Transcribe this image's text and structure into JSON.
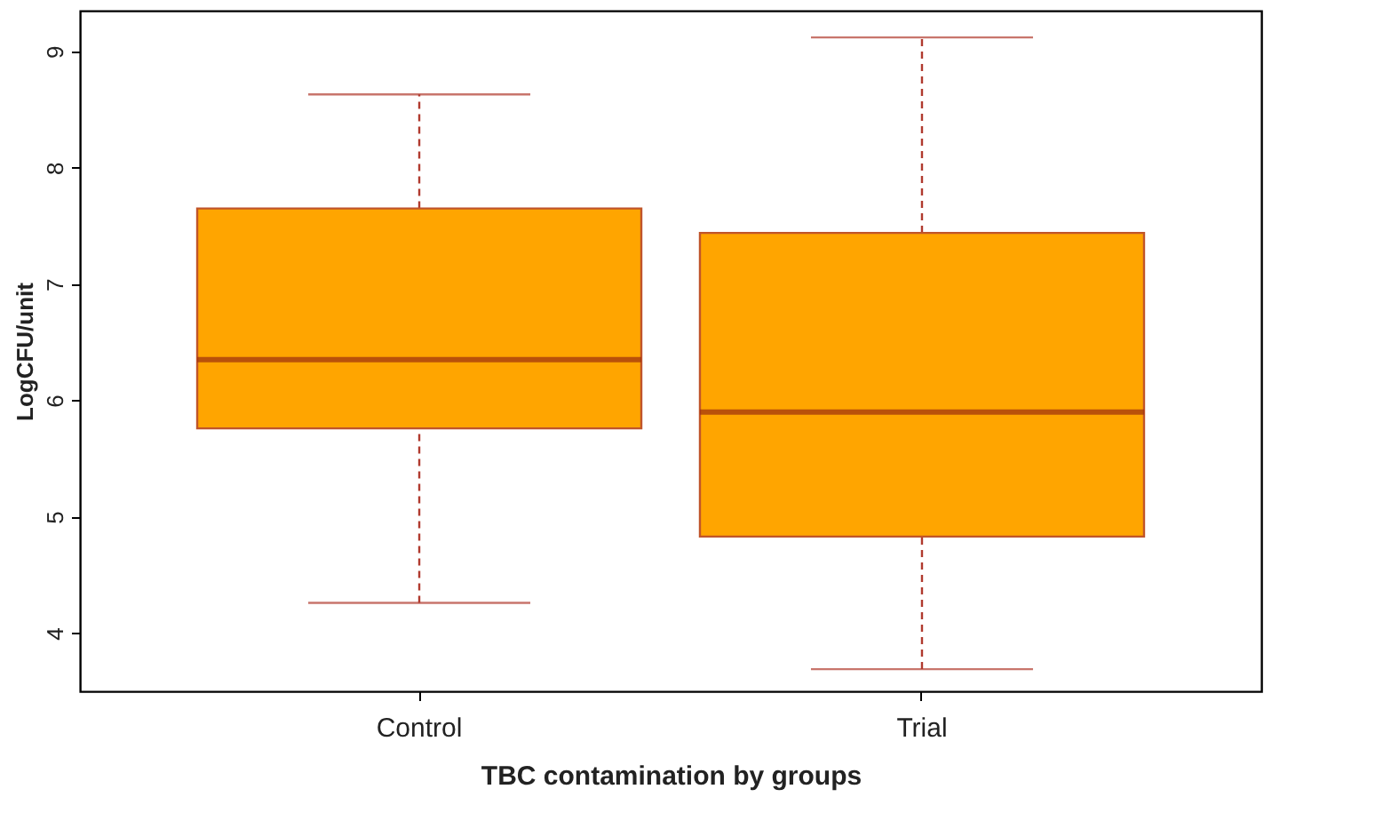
{
  "chart_data": {
    "type": "box",
    "xlabel": "TBC contamination by groups",
    "ylabel": "LogCFU/unit",
    "categories": [
      "Control",
      "Trial"
    ],
    "ylim": [
      3.5,
      9.35
    ],
    "yticks": [
      4,
      5,
      6,
      7,
      8,
      9
    ],
    "grid": false,
    "series": [
      {
        "color": "#ffa500",
        "boxes": [
          {
            "low": 4.26,
            "q1": 5.76,
            "median": 6.35,
            "q3": 7.65,
            "high": 8.63
          },
          {
            "low": 3.69,
            "q1": 4.83,
            "median": 5.9,
            "q3": 7.44,
            "high": 9.12
          }
        ]
      }
    ]
  }
}
